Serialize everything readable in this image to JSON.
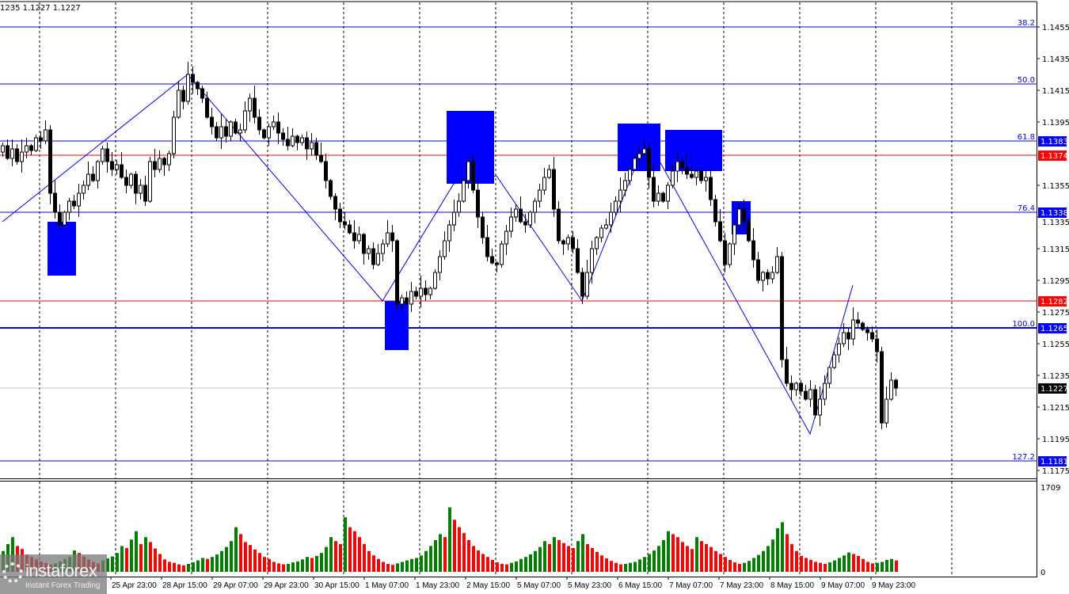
{
  "header": {
    "ohlc_text": "1235 1.1227 1.1227"
  },
  "logo": {
    "brand": "instaforex",
    "tagline": "Instant Forex Trading"
  },
  "colors": {
    "bull_body": "#ffffff",
    "bear_body": "#000000",
    "fib_line": "#0000ff",
    "level_line": "#ff0000",
    "zone": "#0000ff",
    "current_line": "#c0c0c0",
    "volume_up": "#008000",
    "volume_down": "#ff0000",
    "grid": "#000000"
  },
  "chart_data": {
    "type": "candlestick",
    "price_axis": {
      "min": 1.1175,
      "max": 1.1455,
      "ticks": [
        "1.1455",
        "1.1435",
        "1.1415",
        "1.1395",
        "1.1355",
        "1.1335",
        "1.1315",
        "1.1295",
        "1.1275",
        "1.1255",
        "1.1235",
        "1.1215",
        "1.1195",
        "1.1175"
      ]
    },
    "time_labels": [
      "25 Apr 23:00",
      "28 Apr 15:00",
      "29 Apr 07:00",
      "29 Apr 23:00",
      "30 Apr 15:00",
      "1 May 07:00",
      "1 May 23:00",
      "2 May 15:00",
      "5 May 07:00",
      "5 May 23:00",
      "6 May 15:00",
      "7 May 07:00",
      "7 May 23:00",
      "8 May 15:00",
      "9 May 07:00",
      "9 May 23:00"
    ],
    "grid": "vertical dashed (daily)",
    "closes": [
      1.138,
      1.1372,
      1.1378,
      1.137,
      1.1376,
      1.138,
      1.1377,
      1.1385,
      1.1383,
      1.139,
      1.135,
      1.1338,
      1.133,
      1.1338,
      1.1345,
      1.1342,
      1.135,
      1.1355,
      1.1362,
      1.1358,
      1.137,
      1.1378,
      1.137,
      1.1365,
      1.1368,
      1.136,
      1.1355,
      1.1362,
      1.135,
      1.1355,
      1.1345,
      1.137,
      1.1365,
      1.1372,
      1.1368,
      1.1375,
      1.1398,
      1.1415,
      1.1408,
      1.1425,
      1.142,
      1.1416,
      1.141,
      1.1398,
      1.1392,
      1.1385,
      1.1392,
      1.1386,
      1.1395,
      1.1388,
      1.139,
      1.1402,
      1.141,
      1.1398,
      1.139,
      1.1385,
      1.1392,
      1.1395,
      1.1388,
      1.1384,
      1.138,
      1.1386,
      1.1382,
      1.1385,
      1.1378,
      1.1382,
      1.1374,
      1.137,
      1.1358,
      1.1348,
      1.134,
      1.1332,
      1.133,
      1.1325,
      1.132,
      1.1324,
      1.1312,
      1.1315,
      1.1305,
      1.1312,
      1.1318,
      1.1325,
      1.132,
      1.128,
      1.1284,
      1.128,
      1.1288,
      1.1285,
      1.129,
      1.1286,
      1.129,
      1.13,
      1.131,
      1.132,
      1.133,
      1.1338,
      1.1345,
      1.1358,
      1.137,
      1.1352,
      1.1335,
      1.1322,
      1.131,
      1.1306,
      1.1305,
      1.1318,
      1.1326,
      1.1335,
      1.134,
      1.1332,
      1.133,
      1.1338,
      1.1345,
      1.1352,
      1.136,
      1.1365,
      1.134,
      1.132,
      1.1318,
      1.1322,
      1.1315,
      1.13,
      1.1285,
      1.13,
      1.1315,
      1.1322,
      1.1328,
      1.133,
      1.1338,
      1.1345,
      1.1352,
      1.1358,
      1.1365,
      1.1372,
      1.1375,
      1.1378,
      1.136,
      1.1345,
      1.135,
      1.1345,
      1.1355,
      1.1364,
      1.137,
      1.1366,
      1.1362,
      1.136,
      1.1364,
      1.1358,
      1.136,
      1.1346,
      1.1332,
      1.132,
      1.1305,
      1.1318,
      1.133,
      1.134,
      1.1332,
      1.132,
      1.1308,
      1.1295,
      1.13,
      1.1296,
      1.13,
      1.131,
      1.1245,
      1.123,
      1.1226,
      1.123,
      1.1225,
      1.122,
      1.1226,
      1.121,
      1.122,
      1.123,
      1.124,
      1.1248,
      1.1255,
      1.1262,
      1.1258,
      1.127,
      1.1268,
      1.1264,
      1.1262,
      1.1258,
      1.125,
      1.1205,
      1.122,
      1.1232,
      1.1227
    ],
    "volume_axis": {
      "max_label": "1709",
      "min_label": "0",
      "max": 1709
    },
    "volumes": [
      420,
      560,
      700,
      520,
      460,
      340,
      300,
      250,
      210,
      180,
      150,
      170,
      210,
      260,
      300,
      430,
      380,
      310,
      250,
      200,
      170,
      230,
      270,
      310,
      380,
      520,
      480,
      650,
      820,
      560,
      700,
      600,
      470,
      360,
      250,
      200,
      180,
      150,
      130,
      160,
      190,
      230,
      280,
      260,
      300,
      350,
      420,
      500,
      620,
      900,
      760,
      600,
      540,
      450,
      380,
      300,
      260,
      200,
      170,
      150,
      160,
      190,
      210,
      250,
      300,
      280,
      320,
      380,
      500,
      700,
      620,
      560,
      1100,
      900,
      820,
      700,
      560,
      420,
      330,
      260,
      200,
      160,
      140,
      170,
      200,
      230,
      260,
      280,
      330,
      420,
      520,
      640,
      760,
      700,
      1300,
      1050,
      900,
      780,
      640,
      520,
      430,
      360,
      300,
      240,
      190,
      160,
      150,
      180,
      210,
      260,
      300,
      350,
      420,
      500,
      620,
      560,
      700,
      640,
      580,
      520,
      480,
      620,
      760,
      560,
      480,
      400,
      330,
      270,
      220,
      180,
      150,
      160,
      180,
      200,
      250,
      300,
      360,
      430,
      520,
      640,
      820,
      760,
      700,
      600,
      520,
      460,
      700,
      620,
      560,
      500,
      420,
      360,
      300,
      240,
      190,
      160,
      180,
      220,
      280,
      340,
      420,
      520,
      650,
      880,
      1000,
      760,
      560,
      420,
      320,
      280,
      240,
      200,
      180,
      160,
      190,
      230,
      280,
      330,
      390,
      360,
      320,
      260,
      200,
      170,
      180,
      200,
      240,
      260,
      230
    ],
    "fib_levels": [
      {
        "label": "38.2",
        "price": 1.1455
      },
      {
        "label": "50.0",
        "price": 1.1419
      },
      {
        "label": "61.8",
        "price": 1.1383,
        "price_label": "1.1383"
      },
      {
        "label": "76.4",
        "price": 1.1338,
        "price_label": "1.1338"
      },
      {
        "label": "100.0",
        "price": 1.1265,
        "price_label": "1.1265",
        "bold": true
      },
      {
        "label": "127.2",
        "price": 1.1181,
        "price_label": "1.1181"
      }
    ],
    "levels": [
      {
        "price": 1.1374,
        "price_label": "1.1374"
      },
      {
        "price": 1.1282,
        "price_label": "1.1282"
      }
    ],
    "current_price": {
      "price": 1.1227,
      "price_label": "1.1227"
    },
    "zones": [
      {
        "from_bar": 10,
        "to_bar": 15,
        "top": 1.1332,
        "bottom": 1.1298
      },
      {
        "from_bar": 81,
        "to_bar": 85,
        "top": 1.1282,
        "bottom": 1.1251
      },
      {
        "from_bar": 94,
        "to_bar": 103,
        "top": 1.1402,
        "bottom": 1.1356
      },
      {
        "from_bar": 130,
        "to_bar": 138,
        "top": 1.1394,
        "bottom": 1.1364
      },
      {
        "from_bar": 140,
        "to_bar": 151,
        "top": 1.139,
        "bottom": 1.1364
      },
      {
        "from_bar": 154,
        "to_bar": 157,
        "top": 1.1345,
        "bottom": 1.1324
      }
    ],
    "zigzag": [
      [
        0,
        1.1332
      ],
      [
        39,
        1.1425
      ],
      [
        80,
        1.1282
      ],
      [
        95,
        1.1356
      ],
      [
        104,
        1.1361
      ],
      [
        122,
        1.1282
      ],
      [
        133,
        1.1365
      ],
      [
        138,
        1.1372
      ],
      [
        170,
        1.1198
      ],
      [
        179,
        1.1292
      ]
    ]
  }
}
